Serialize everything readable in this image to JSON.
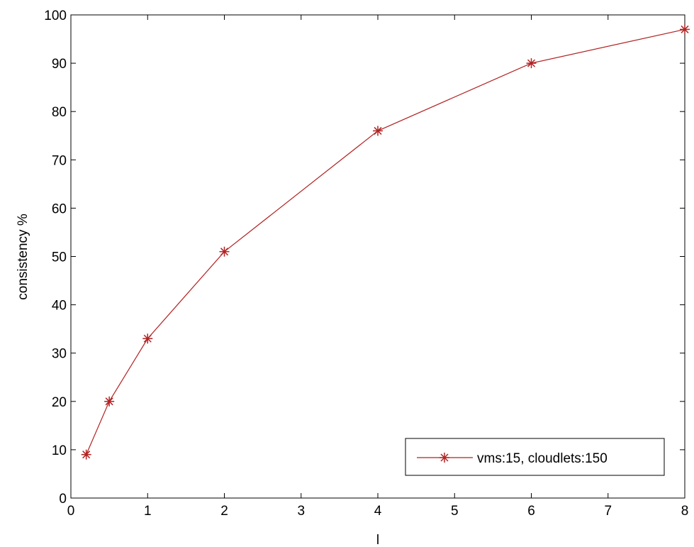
{
  "chart_data": {
    "type": "line",
    "title": "",
    "xlabel": "l",
    "ylabel": "consistency %",
    "xlim": [
      0,
      8
    ],
    "ylim": [
      0,
      100
    ],
    "xticks": [
      "0",
      "1",
      "2",
      "3",
      "4",
      "5",
      "6",
      "7",
      "8"
    ],
    "yticks": [
      "0",
      "10",
      "20",
      "30",
      "40",
      "50",
      "60",
      "70",
      "80",
      "90",
      "100"
    ],
    "grid": false,
    "legend_position": "bottom-right",
    "series": [
      {
        "name": "vms:15, cloudlets:150",
        "color": "#b22222",
        "marker": "asterisk",
        "x": [
          0.2,
          0.5,
          1,
          2,
          4,
          6,
          8
        ],
        "y": [
          9,
          20,
          33,
          51,
          76,
          90,
          97
        ]
      }
    ]
  }
}
